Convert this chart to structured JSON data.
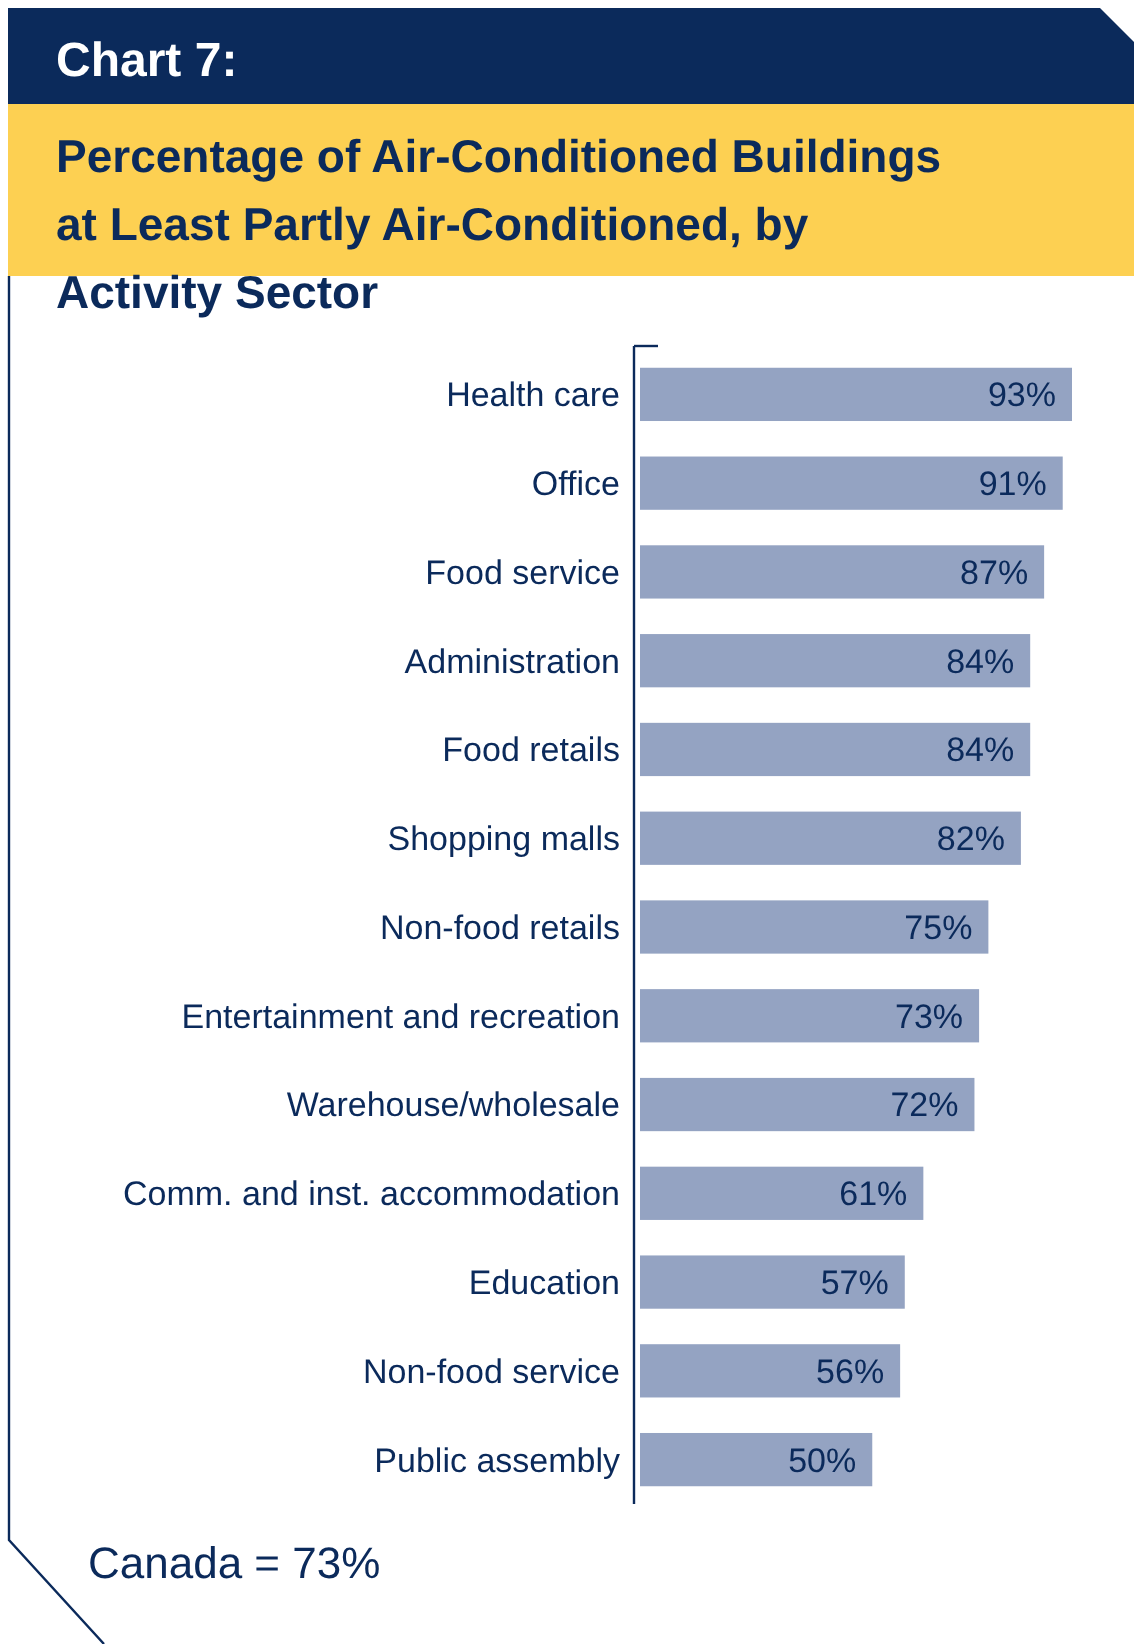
{
  "chart_data": {
    "type": "bar",
    "orientation": "horizontal",
    "title": "Chart 7:",
    "subtitle": "Percentage of Air-Conditioned Buildings at Least Partly Air-Conditioned, by Activity Sector",
    "categories": [
      "Health care",
      "Office",
      "Food service",
      "Administration",
      "Food retails",
      "Shopping malls",
      "Non-food retails",
      "Entertainment and recreation",
      "Warehouse/wholesale",
      "Comm. and inst. accommodation",
      "Education",
      "Non-food service",
      "Public assembly"
    ],
    "values": [
      93,
      91,
      87,
      84,
      84,
      82,
      75,
      73,
      72,
      61,
      57,
      56,
      50
    ],
    "value_labels": [
      "93%",
      "91%",
      "87%",
      "84%",
      "84%",
      "82%",
      "75%",
      "73%",
      "72%",
      "61%",
      "57%",
      "56%",
      "50%"
    ],
    "color": "#94a3c2",
    "annotations": [
      "Canada = 73%"
    ]
  }
}
